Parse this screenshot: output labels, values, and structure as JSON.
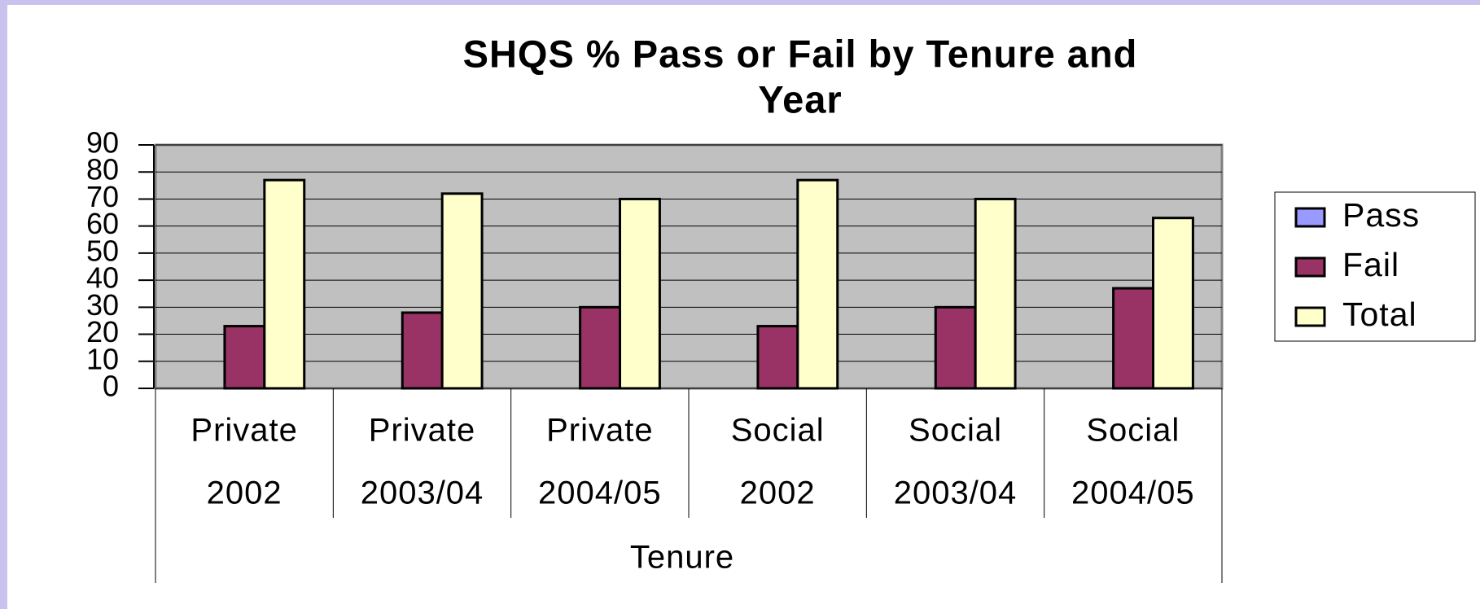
{
  "chart_data": {
    "type": "bar",
    "title": [
      "SHQS % Pass or Fail by Tenure and",
      "Year"
    ],
    "categories": [
      [
        "Private",
        "2002"
      ],
      [
        "Private",
        "2003/04"
      ],
      [
        "Private",
        "2004/05"
      ],
      [
        "Social",
        "2002"
      ],
      [
        "Social",
        "2003/04"
      ],
      [
        "Social",
        "2004/05"
      ]
    ],
    "x_label": "Tenure",
    "series": [
      {
        "name": "Pass",
        "color": "#9999ff",
        "values": [
          null,
          null,
          null,
          null,
          null,
          null
        ]
      },
      {
        "name": "Fail",
        "color": "#993366",
        "values": [
          23,
          28,
          30,
          23,
          30,
          37
        ]
      },
      {
        "name": "Total",
        "color": "#ffffcc",
        "values": [
          77,
          72,
          70,
          77,
          70,
          63
        ]
      }
    ],
    "ylim": [
      0,
      90
    ],
    "yticks": [
      0,
      10,
      20,
      30,
      40,
      50,
      60,
      70,
      80,
      90
    ],
    "grid": true,
    "legend": "right"
  }
}
